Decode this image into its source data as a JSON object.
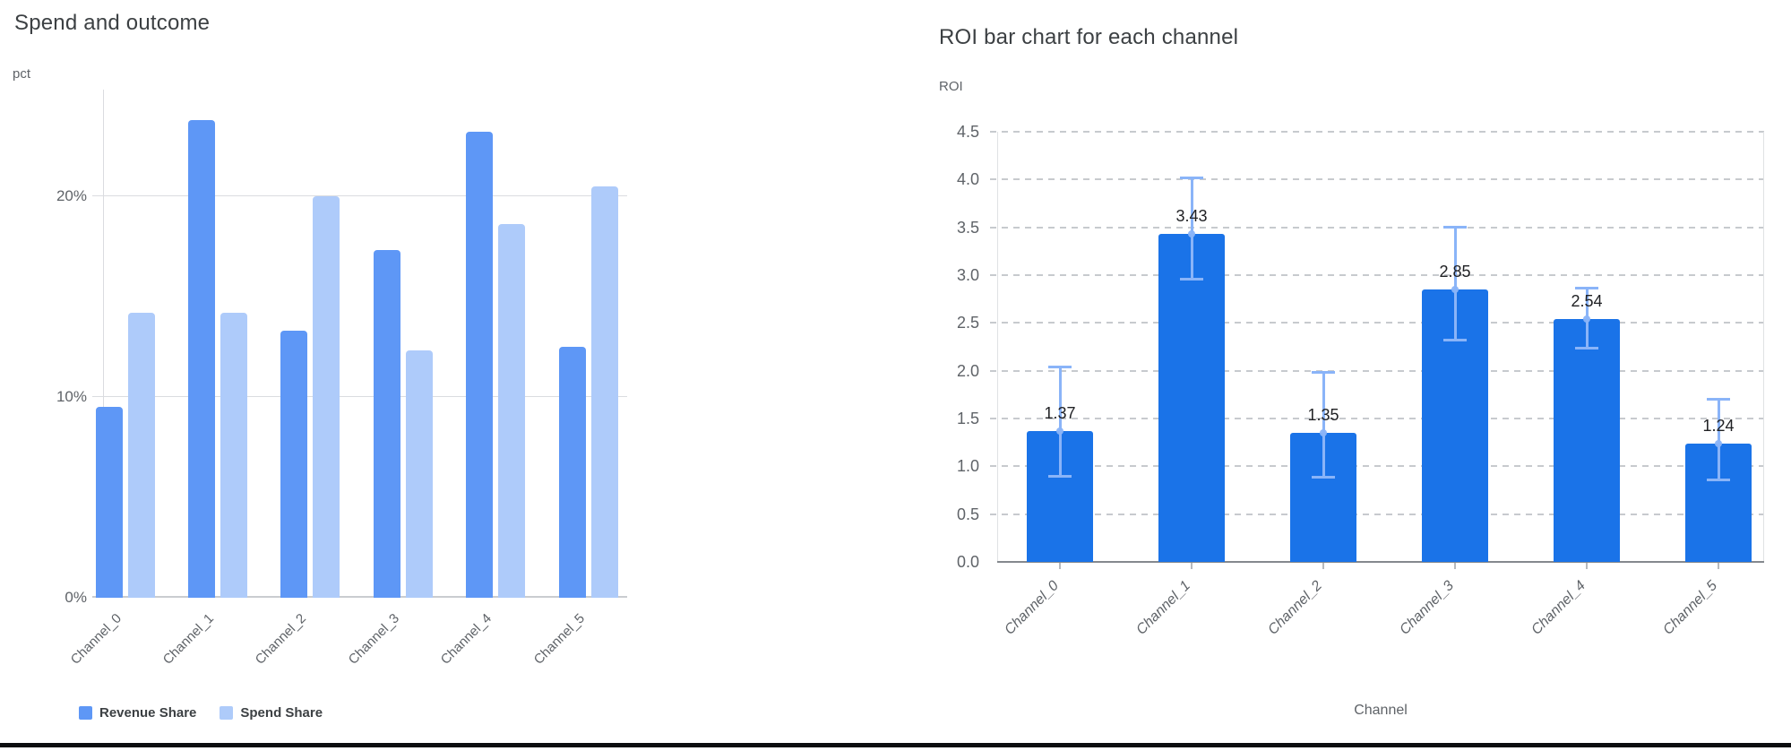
{
  "page": {
    "background": "#ffffff",
    "bottom_border_color": "#0c0d0f"
  },
  "chart_data": [
    {
      "type": "bar",
      "title": "Spend and outcome",
      "ylabel": "pct",
      "xlabel": "",
      "categories": [
        "Channel_0",
        "Channel_1",
        "Channel_2",
        "Channel_3",
        "Channel_4",
        "Channel_5"
      ],
      "series": [
        {
          "name": "Revenue Share",
          "color": "#5e97f6",
          "values": [
            9.5,
            23.8,
            13.3,
            17.3,
            23.2,
            12.5
          ]
        },
        {
          "name": "Spend Share",
          "color": "#aecbfa",
          "values": [
            14.2,
            14.2,
            20.0,
            12.3,
            18.6,
            20.5
          ]
        }
      ],
      "yticks": [
        0,
        10,
        20
      ],
      "ytick_labels": [
        "0%",
        "10%",
        "20%"
      ],
      "ylim": [
        0,
        25.3
      ],
      "grid": "horizontal-solid",
      "legend_position": "bottom-left",
      "axis_colors": {
        "gridline": "#dadce0",
        "baseline": "#c9ccd0",
        "tick_text": "#5f6368"
      }
    },
    {
      "type": "bar",
      "title": "ROI bar chart for each channel",
      "ylabel": "ROI",
      "xlabel": "Channel",
      "categories": [
        "Channel_0",
        "Channel_1",
        "Channel_2",
        "Channel_3",
        "Channel_4",
        "Channel_5"
      ],
      "values": [
        1.37,
        3.43,
        1.35,
        2.85,
        2.54,
        1.24
      ],
      "bar_labels": [
        "1.37",
        "3.43",
        "1.35",
        "2.85",
        "2.54",
        "1.24"
      ],
      "error_low": [
        0.89,
        2.95,
        0.88,
        2.32,
        2.23,
        0.85
      ],
      "error_high": [
        2.04,
        4.02,
        1.99,
        3.51,
        2.87,
        1.71
      ],
      "bar_color": "#1a73e8",
      "error_color": "#8ab4f8",
      "yticks": [
        0,
        0.5,
        1,
        1.5,
        2,
        2.5,
        3,
        3.5,
        4,
        4.5
      ],
      "ytick_labels": [
        "0.0",
        "0.5",
        "1.0",
        "1.5",
        "2.0",
        "2.5",
        "3.0",
        "3.5",
        "4.0",
        "4.5"
      ],
      "ylim": [
        0,
        4.5
      ],
      "grid": "horizontal-dashed",
      "legend_position": "none",
      "axis_colors": {
        "gridline": "#c7cace",
        "baseline": "#85898e",
        "frame": "#e0e2e4",
        "tick_text": "#5f6368",
        "value_text": "#202124"
      }
    }
  ]
}
